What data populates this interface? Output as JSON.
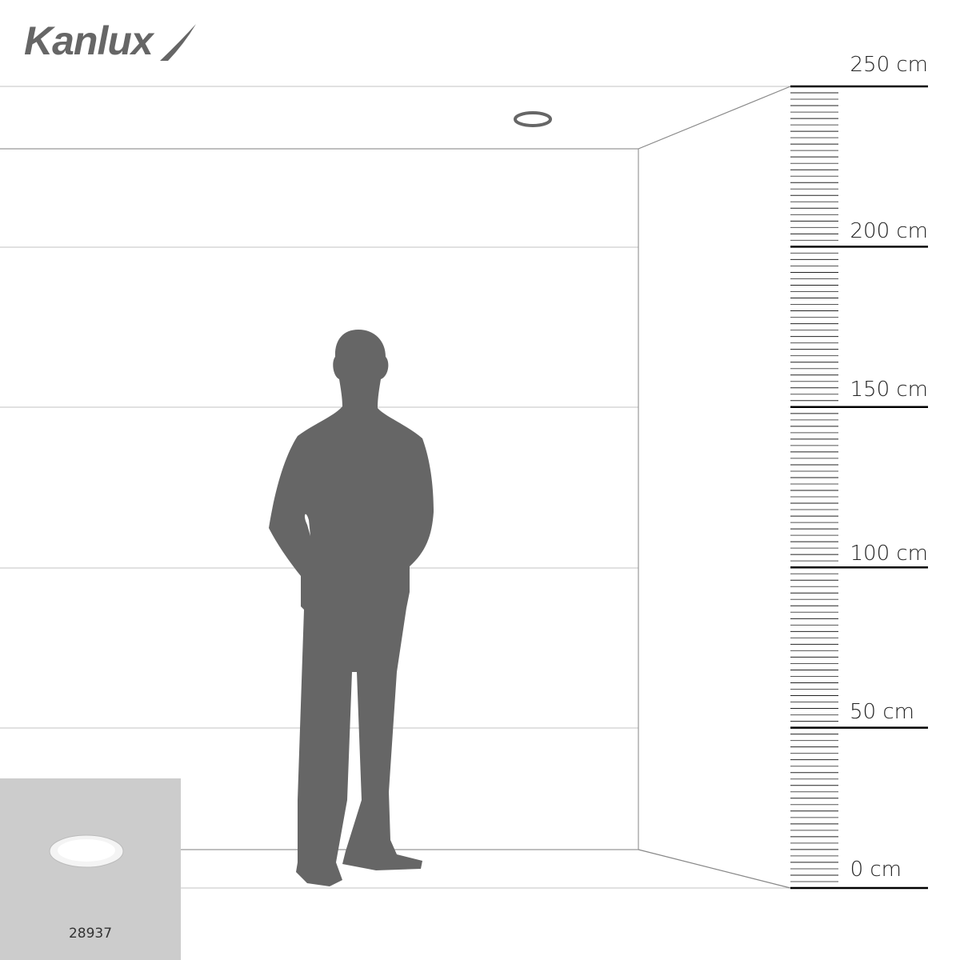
{
  "brand": {
    "logo_text": "Kanlux"
  },
  "ruler": {
    "unit": "cm",
    "labels": [
      {
        "value": 250,
        "text": "250 cm"
      },
      {
        "value": 200,
        "text": "200 cm"
      },
      {
        "value": 150,
        "text": "150 cm"
      },
      {
        "value": 100,
        "text": "100 cm"
      },
      {
        "value": 50,
        "text": "50 cm"
      },
      {
        "value": 0,
        "text": "0 cm"
      }
    ],
    "tick_step": 2
  },
  "product": {
    "code": "28937"
  },
  "colors": {
    "silhouette": "#666666",
    "wall_line": "#cccccc",
    "product_bg": "#cccccc"
  }
}
